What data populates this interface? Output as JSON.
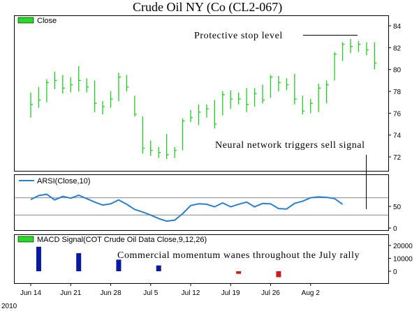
{
  "title": "Crude Oil NY (Co (CL2-067)",
  "footer": "2010",
  "colors": {
    "price_bar": "#22cc22",
    "legend_swatch": "#22dd22",
    "arsi_line": "#2a7fd0",
    "macd_positive": "#0a1aa0",
    "macd_negative": "#c81e1e",
    "annotation_line": "#000000",
    "grid": "#888888"
  },
  "chart_data": [
    {
      "type": "ohlc",
      "legend": "Close",
      "ylim": [
        70.5,
        84.5
      ],
      "y_ticks": [
        72,
        74,
        76,
        78,
        80,
        82,
        84
      ],
      "x_tick_labels": [
        "Jun 14",
        "Jun 21",
        "Jun 28",
        "Jul 5",
        "Jul 12",
        "Jul 19",
        "Jul 26",
        "Aug 2"
      ],
      "x_tick_index": [
        0,
        5,
        10,
        15,
        20,
        25,
        30,
        35
      ],
      "bars": [
        {
          "high": 77.9,
          "low": 75.6,
          "close": 76.8
        },
        {
          "high": 78.4,
          "low": 76.5,
          "close": 77.2
        },
        {
          "high": 79.1,
          "low": 77.0,
          "close": 78.8
        },
        {
          "high": 79.8,
          "low": 78.2,
          "close": 79.0
        },
        {
          "high": 79.5,
          "low": 77.8,
          "close": 78.3
        },
        {
          "high": 79.3,
          "low": 77.9,
          "close": 78.6
        },
        {
          "high": 80.3,
          "low": 78.0,
          "close": 79.0
        },
        {
          "high": 79.2,
          "low": 77.9,
          "close": 78.4
        },
        {
          "high": 79.0,
          "low": 76.1,
          "close": 76.9
        },
        {
          "high": 77.1,
          "low": 75.9,
          "close": 76.6
        },
        {
          "high": 78.0,
          "low": 76.5,
          "close": 77.3
        },
        {
          "high": 79.7,
          "low": 77.1,
          "close": 79.3
        },
        {
          "high": 79.5,
          "low": 78.0,
          "close": 78.4
        },
        {
          "high": 77.6,
          "low": 75.7,
          "close": 75.9
        },
        {
          "high": 75.7,
          "low": 72.3,
          "close": 72.8
        },
        {
          "high": 73.5,
          "low": 72.1,
          "close": 72.6
        },
        {
          "high": 72.9,
          "low": 71.9,
          "close": 72.4
        },
        {
          "high": 74.1,
          "low": 71.8,
          "close": 72.2
        },
        {
          "high": 72.9,
          "low": 71.9,
          "close": 72.6
        },
        {
          "high": 75.5,
          "low": 72.6,
          "close": 75.3
        },
        {
          "high": 76.3,
          "low": 75.2,
          "close": 75.6
        },
        {
          "high": 76.8,
          "low": 74.9,
          "close": 76.1
        },
        {
          "high": 76.8,
          "low": 75.6,
          "close": 76.4
        },
        {
          "high": 77.2,
          "low": 74.6,
          "close": 75.0
        },
        {
          "high": 78.0,
          "low": 75.8,
          "close": 77.7
        },
        {
          "high": 78.1,
          "low": 76.4,
          "close": 77.3
        },
        {
          "high": 77.9,
          "low": 76.8,
          "close": 77.3
        },
        {
          "high": 78.3,
          "low": 76.1,
          "close": 76.8
        },
        {
          "high": 78.3,
          "low": 76.6,
          "close": 77.8
        },
        {
          "high": 78.6,
          "low": 76.9,
          "close": 77.2
        },
        {
          "high": 79.5,
          "low": 77.4,
          "close": 79.3
        },
        {
          "high": 79.4,
          "low": 78.0,
          "close": 78.8
        },
        {
          "high": 79.2,
          "low": 78.1,
          "close": 78.6
        },
        {
          "high": 79.6,
          "low": 76.8,
          "close": 77.3
        },
        {
          "high": 77.6,
          "low": 75.9,
          "close": 76.2
        },
        {
          "high": 77.3,
          "low": 76.0,
          "close": 76.9
        },
        {
          "high": 78.7,
          "low": 76.1,
          "close": 78.3
        },
        {
          "high": 79.0,
          "low": 76.9,
          "close": 78.6
        },
        {
          "high": 81.6,
          "low": 79.0,
          "close": 81.4
        },
        {
          "high": 82.5,
          "low": 80.8,
          "close": 82.3
        },
        {
          "high": 82.8,
          "low": 81.5,
          "close": 82.1
        },
        {
          "high": 82.6,
          "low": 81.6,
          "close": 82.3
        },
        {
          "high": 82.5,
          "low": 81.3,
          "close": 81.8
        },
        {
          "high": 82.5,
          "low": 80.0,
          "close": 80.6
        }
      ],
      "annotations": [
        "Protective stop level",
        "Neural network triggers sell signal"
      ],
      "stop_level": 83.5
    },
    {
      "type": "line",
      "legend": "ARSI(Close,10)",
      "ylim": [
        0,
        100
      ],
      "y_tick_labels": [
        "50",
        "0"
      ],
      "reference_lines": [
        70,
        30
      ],
      "values": [
        66,
        75,
        78,
        65,
        73,
        69,
        76,
        68,
        60,
        53,
        56,
        65,
        55,
        43,
        37,
        30,
        22,
        16,
        18,
        33,
        52,
        56,
        55,
        49,
        58,
        49,
        55,
        60,
        49,
        57,
        56,
        45,
        44,
        57,
        62,
        70,
        72,
        71,
        68,
        55
      ]
    },
    {
      "type": "bar",
      "legend": "MACD Signal(COT Crude Oil Data Close,9,12,26)",
      "ylim": [
        -8000,
        20500
      ],
      "y_tick_labels": [
        "20000",
        "10000",
        "0"
      ],
      "annotation": "Commercial momentum wanes throughout the July rally",
      "bars": [
        {
          "x": 1,
          "value": 19000
        },
        {
          "x": 6,
          "value": 14000
        },
        {
          "x": 11,
          "value": 9000
        },
        {
          "x": 16,
          "value": 4500
        },
        {
          "x": 26,
          "value": -2000
        },
        {
          "x": 31,
          "value": -4600
        }
      ]
    }
  ]
}
